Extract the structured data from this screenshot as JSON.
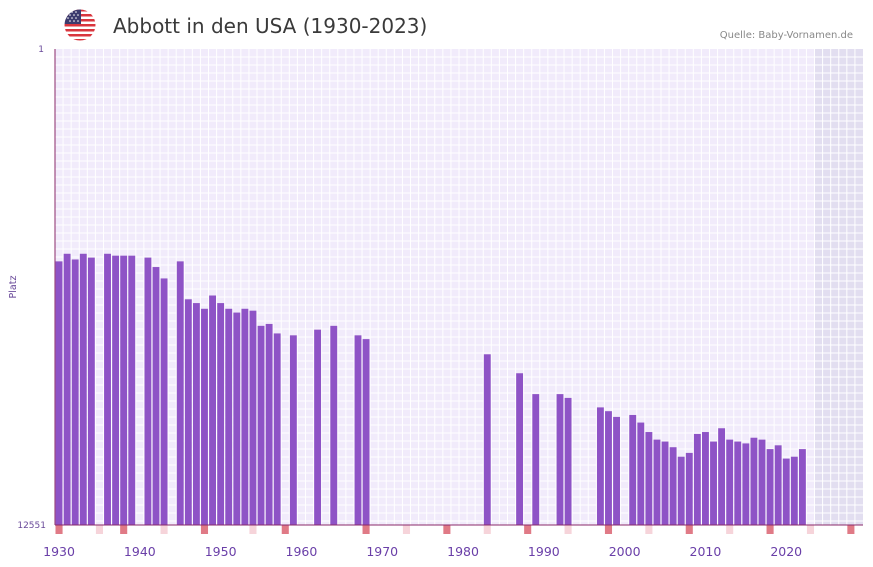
{
  "header": {
    "title": "Abbott in den USA (1930-2023)",
    "source": "Quelle: Baby-Vornamen.de",
    "flag_icon": "us-flag-icon"
  },
  "colors": {
    "bar": "#8e53c6",
    "plot_bg": "#f1ebfb",
    "grid": "#ffffff",
    "future_bg": "#e2def0",
    "axis": "#8a2a6a",
    "decade_marker": "#e07a86",
    "year_marker": "#f6d4da"
  },
  "chart_data": {
    "type": "bar",
    "title": "Abbott in den USA (1930-2023)",
    "ylabel": "Platz",
    "xlabel": "",
    "y_reversed": true,
    "ylim": [
      1,
      12551
    ],
    "xlim": [
      1929.5,
      2029.5
    ],
    "y_ticks": [
      "1",
      "12551"
    ],
    "x_ticks": [
      1930,
      1940,
      1950,
      1960,
      1970,
      1980,
      1990,
      2000,
      2010,
      2020
    ],
    "future_start_year": 2023.5,
    "x": [
      1930,
      1931,
      1932,
      1933,
      1934,
      1935,
      1936,
      1937,
      1938,
      1939,
      1940,
      1941,
      1942,
      1943,
      1944,
      1945,
      1946,
      1947,
      1948,
      1949,
      1950,
      1951,
      1952,
      1953,
      1954,
      1955,
      1956,
      1957,
      1958,
      1959,
      1960,
      1961,
      1962,
      1963,
      1964,
      1965,
      1966,
      1967,
      1968,
      1969,
      1970,
      1971,
      1972,
      1973,
      1974,
      1975,
      1976,
      1977,
      1978,
      1979,
      1980,
      1981,
      1982,
      1983,
      1984,
      1985,
      1986,
      1987,
      1988,
      1989,
      1990,
      1991,
      1992,
      1993,
      1994,
      1995,
      1996,
      1997,
      1998,
      1999,
      2000,
      2001,
      2002,
      2003,
      2004,
      2005,
      2006,
      2007,
      2008,
      2009,
      2010,
      2011,
      2012,
      2013,
      2014,
      2015,
      2016,
      2017,
      2018,
      2019,
      2020,
      2021,
      2022,
      2023
    ],
    "values": [
      5600,
      5400,
      5550,
      5400,
      5500,
      null,
      5400,
      5450,
      5450,
      5450,
      null,
      5500,
      5750,
      6050,
      null,
      5600,
      6600,
      6700,
      6850,
      6500,
      6700,
      6850,
      6950,
      6850,
      6900,
      7300,
      7250,
      7500,
      null,
      7550,
      null,
      null,
      7400,
      null,
      7300,
      null,
      null,
      7550,
      7650,
      null,
      null,
      null,
      null,
      null,
      null,
      null,
      null,
      null,
      null,
      null,
      null,
      null,
      null,
      8050,
      null,
      null,
      null,
      8550,
      null,
      9100,
      null,
      null,
      9100,
      9200,
      null,
      null,
      null,
      9450,
      9550,
      9700,
      null,
      9650,
      9850,
      10100,
      10300,
      10350,
      10500,
      10750,
      10650,
      10150,
      10100,
      10350,
      10000,
      10300,
      10350,
      10400,
      10250,
      10300,
      10550,
      10450,
      10800,
      10750,
      10550,
      null
    ],
    "decade_marker_years": [
      1930,
      1938,
      1948,
      1958,
      1968,
      1978,
      1988,
      1998,
      2008,
      2018,
      2028
    ],
    "minor_marker_years": [
      1935,
      1943,
      1954,
      1973,
      1983,
      1993,
      2003,
      2013,
      2023
    ]
  }
}
